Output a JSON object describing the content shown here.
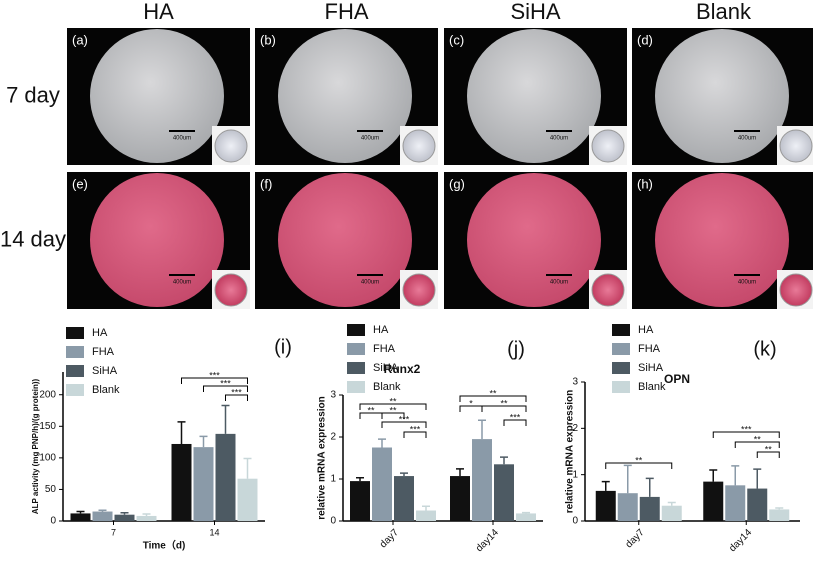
{
  "figure": {
    "columns": [
      "HA",
      "FHA",
      "SiHA",
      "Blank"
    ],
    "rows": [
      "7 day",
      "14 day"
    ],
    "panels": [
      {
        "label": "(a)",
        "scale": "400um"
      },
      {
        "label": "(b)",
        "scale": "400um"
      },
      {
        "label": "(c)",
        "scale": "400um"
      },
      {
        "label": "(d)",
        "scale": "400um"
      },
      {
        "label": "(e)",
        "scale": "400um"
      },
      {
        "label": "(f)",
        "scale": "400um"
      },
      {
        "label": "(g)",
        "scale": "400um"
      },
      {
        "label": "(h)",
        "scale": "400um"
      }
    ]
  },
  "chart_data": [
    {
      "type": "bar",
      "panel": "(i)",
      "x_label": "Time（d)",
      "y_label": "ALP activity (mg PNP/h)/(g protein))",
      "categories": [
        "7",
        "14"
      ],
      "ylim": [
        0,
        236
      ],
      "yticks": [
        0,
        50,
        100,
        150,
        200
      ],
      "series": [
        {
          "name": "HA",
          "color": "#111111",
          "values": [
            12,
            122
          ],
          "errors": [
            3,
            35
          ]
        },
        {
          "name": "FHA",
          "color": "#8a9aa8",
          "values": [
            15,
            117
          ],
          "errors": [
            2,
            17
          ]
        },
        {
          "name": "SiHA",
          "color": "#4d5a63",
          "values": [
            10,
            138
          ],
          "errors": [
            3,
            45
          ]
        },
        {
          "name": "Blank",
          "color": "#c8d7d9",
          "values": [
            8,
            67
          ],
          "errors": [
            3,
            32
          ]
        }
      ],
      "annotations": [
        "***",
        "***",
        "***"
      ]
    },
    {
      "type": "bar",
      "panel": "(j)",
      "title": "Runx2",
      "y_label": "relative mRNA expression",
      "categories": [
        "day7",
        "day14"
      ],
      "ylim": [
        0,
        3
      ],
      "yticks": [
        0,
        1,
        2,
        3
      ],
      "series": [
        {
          "name": "HA",
          "color": "#111111",
          "values": [
            0.95,
            1.07
          ],
          "errors": [
            0.08,
            0.17
          ]
        },
        {
          "name": "FHA",
          "color": "#8a9aa8",
          "values": [
            1.75,
            1.95
          ],
          "errors": [
            0.2,
            0.45
          ]
        },
        {
          "name": "SiHA",
          "color": "#4d5a63",
          "values": [
            1.07,
            1.35
          ],
          "errors": [
            0.07,
            0.17
          ]
        },
        {
          "name": "Blank",
          "color": "#c8d7d9",
          "values": [
            0.25,
            0.18
          ],
          "errors": [
            0.1,
            0.02
          ]
        }
      ],
      "annotations": [
        "**",
        "**",
        "**",
        "***",
        "***",
        "**",
        "*",
        "**",
        "***"
      ]
    },
    {
      "type": "bar",
      "panel": "(k)",
      "title": "OPN",
      "y_label": "relative mRNA expression",
      "categories": [
        "day7",
        "day14"
      ],
      "ylim": [
        0,
        3
      ],
      "yticks": [
        0,
        1,
        2,
        3
      ],
      "series": [
        {
          "name": "HA",
          "color": "#111111",
          "values": [
            0.65,
            0.85
          ],
          "errors": [
            0.2,
            0.25
          ]
        },
        {
          "name": "FHA",
          "color": "#8a9aa8",
          "values": [
            0.6,
            0.77
          ],
          "errors": [
            0.6,
            0.42
          ]
        },
        {
          "name": "SiHA",
          "color": "#4d5a63",
          "values": [
            0.52,
            0.7
          ],
          "errors": [
            0.4,
            0.42
          ]
        },
        {
          "name": "Blank",
          "color": "#c8d7d9",
          "values": [
            0.33,
            0.25
          ],
          "errors": [
            0.07,
            0.03
          ]
        }
      ],
      "annotations": [
        "**",
        "***",
        "**",
        "**"
      ]
    }
  ]
}
